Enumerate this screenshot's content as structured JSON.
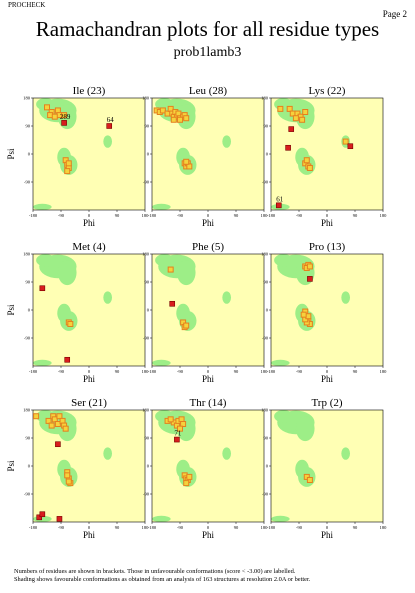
{
  "header": {
    "program": "PROCHECK",
    "page": "Page 2",
    "title": "Ramachandran plots for all residue types",
    "subtitle": "prob1lamb3"
  },
  "footnote": {
    "line1": "Numbers of residues are shown in brackets. Those in unfavourable conformations (score < -3.00) are labelled.",
    "line2": "Shading shows favourable conformations as obtained from an analysis of 163 structures at resolution 2.0A or better."
  },
  "colors": {
    "panel_background": "#ffffb4",
    "favourable_shading": "#74e874",
    "point_fill": "#f5d23c",
    "point_edge": "#e5801e",
    "outlier_fill": "#d81e1e"
  },
  "chart_data": [
    {
      "type": "scatter",
      "title": "Ile (23)",
      "xlabel": "Phi",
      "ylabel": "Psi",
      "xlim": [
        -180,
        180
      ],
      "ylim": [
        -180,
        180
      ],
      "xticks": [
        -180,
        -90,
        0,
        90,
        180
      ],
      "yticks": [
        -90,
        0,
        90,
        180
      ],
      "series": [
        {
          "values": [
            [
              -135,
              150
            ],
            [
              -120,
              135
            ],
            [
              -100,
              140
            ],
            [
              -95,
              125
            ],
            [
              -80,
              125
            ],
            [
              -125,
              125
            ],
            [
              -110,
              120
            ],
            [
              -75,
              -20
            ],
            [
              -70,
              -35
            ],
            [
              -65,
              -45
            ],
            [
              -70,
              -55
            ],
            [
              -65,
              -30
            ]
          ]
        }
      ],
      "outliers": [
        {
          "x": 65,
          "y": 90,
          "label": "64"
        },
        {
          "x": -80,
          "y": 100,
          "label": "289"
        }
      ]
    },
    {
      "type": "scatter",
      "title": "Leu (28)",
      "xlabel": "Phi",
      "ylabel": "Psi",
      "xlim": [
        -180,
        180
      ],
      "ylim": [
        -180,
        180
      ],
      "xticks": [
        -180,
        -90,
        0,
        90,
        180
      ],
      "yticks": [
        -90,
        0,
        90,
        180
      ],
      "series": [
        {
          "values": [
            [
              -165,
              140
            ],
            [
              -155,
              135
            ],
            [
              -145,
              140
            ],
            [
              -130,
              130
            ],
            [
              -120,
              145
            ],
            [
              -115,
              130
            ],
            [
              -110,
              120
            ],
            [
              -105,
              135
            ],
            [
              -100,
              120
            ],
            [
              -95,
              130
            ],
            [
              -90,
              115
            ],
            [
              -80,
              120
            ],
            [
              -75,
              125
            ],
            [
              -70,
              115
            ],
            [
              -110,
              110
            ],
            [
              -90,
              110
            ],
            [
              -75,
              -30
            ],
            [
              -70,
              -40
            ],
            [
              -65,
              -30
            ],
            [
              -60,
              -40
            ],
            [
              -70,
              -25
            ]
          ]
        }
      ],
      "outliers": []
    },
    {
      "type": "scatter",
      "title": "Lys (22)",
      "xlabel": "Phi",
      "ylabel": "Psi",
      "xlim": [
        -180,
        180
      ],
      "ylim": [
        -180,
        180
      ],
      "xticks": [
        -180,
        -90,
        0,
        90,
        180
      ],
      "yticks": [
        -90,
        0,
        90,
        180
      ],
      "series": [
        {
          "values": [
            [
              -150,
              145
            ],
            [
              -120,
              145
            ],
            [
              -110,
              130
            ],
            [
              -95,
              130
            ],
            [
              -85,
              120
            ],
            [
              -70,
              135
            ],
            [
              -80,
              110
            ],
            [
              -100,
              115
            ],
            [
              -70,
              -30
            ],
            [
              -60,
              -40
            ],
            [
              -65,
              -20
            ],
            [
              -55,
              -45
            ],
            [
              60,
              40
            ]
          ]
        }
      ],
      "outliers": [
        {
          "x": -115,
          "y": 80,
          "label": ""
        },
        {
          "x": -125,
          "y": 20,
          "label": ""
        },
        {
          "x": 75,
          "y": 25,
          "label": ""
        },
        {
          "x": -155,
          "y": -165,
          "label": "61"
        }
      ]
    },
    {
      "type": "scatter",
      "title": "Met (4)",
      "xlabel": "Phi",
      "ylabel": "Psi",
      "xlim": [
        -180,
        180
      ],
      "ylim": [
        -180,
        180
      ],
      "xticks": [
        -180,
        -90,
        0,
        90,
        180
      ],
      "yticks": [
        -90,
        0,
        90,
        180
      ],
      "series": [
        {
          "values": [
            [
              -65,
              -40
            ],
            [
              -60,
              -45
            ]
          ]
        }
      ],
      "outliers": [
        {
          "x": -150,
          "y": 70,
          "label": ""
        },
        {
          "x": -70,
          "y": -160,
          "label": ""
        }
      ]
    },
    {
      "type": "scatter",
      "title": "Phe (5)",
      "xlabel": "Phi",
      "ylabel": "Psi",
      "xlim": [
        -180,
        180
      ],
      "ylim": [
        -180,
        180
      ],
      "xticks": [
        -180,
        -90,
        0,
        90,
        180
      ],
      "yticks": [
        -90,
        0,
        90,
        180
      ],
      "series": [
        {
          "values": [
            [
              -120,
              130
            ],
            [
              -80,
              -40
            ],
            [
              -75,
              -55
            ],
            [
              -70,
              -50
            ]
          ]
        }
      ],
      "outliers": [
        {
          "x": -115,
          "y": 20,
          "label": ""
        }
      ]
    },
    {
      "type": "scatter",
      "title": "Pro (13)",
      "xlabel": "Phi",
      "ylabel": "Psi",
      "xlim": [
        -180,
        180
      ],
      "ylim": [
        -180,
        180
      ],
      "xticks": [
        -180,
        -90,
        0,
        90,
        180
      ],
      "yticks": [
        -90,
        0,
        90,
        180
      ],
      "series": [
        {
          "values": [
            [
              -70,
              140
            ],
            [
              -60,
              145
            ],
            [
              -65,
              135
            ],
            [
              -55,
              140
            ],
            [
              -70,
              -5
            ],
            [
              -65,
              -25
            ],
            [
              -60,
              -35
            ],
            [
              -55,
              -45
            ],
            [
              -65,
              -40
            ],
            [
              -70,
              -30
            ],
            [
              -60,
              -20
            ],
            [
              -75,
              -15
            ]
          ]
        }
      ],
      "outliers": [
        {
          "x": -55,
          "y": 100,
          "label": ""
        }
      ]
    },
    {
      "type": "scatter",
      "title": "Ser (21)",
      "xlabel": "Phi",
      "ylabel": "Psi",
      "xlim": [
        -180,
        180
      ],
      "ylim": [
        -180,
        180
      ],
      "xticks": [
        -180,
        -90,
        0,
        90,
        180
      ],
      "yticks": [
        -90,
        0,
        90,
        180
      ],
      "series": [
        {
          "values": [
            [
              -170,
              160
            ],
            [
              -130,
              145
            ],
            [
              -115,
              160
            ],
            [
              -110,
              150
            ],
            [
              -100,
              135
            ],
            [
              -95,
              160
            ],
            [
              -85,
              145
            ],
            [
              -80,
              130
            ],
            [
              -75,
              120
            ],
            [
              -120,
              130
            ],
            [
              -70,
              -20
            ],
            [
              -65,
              -40
            ],
            [
              -60,
              -55
            ],
            [
              -65,
              -50
            ],
            [
              -70,
              -30
            ]
          ]
        }
      ],
      "outliers": [
        {
          "x": -100,
          "y": 70,
          "label": ""
        },
        {
          "x": -160,
          "y": -165,
          "label": ""
        },
        {
          "x": -150,
          "y": -155,
          "label": ""
        },
        {
          "x": -95,
          "y": -170,
          "label": ""
        }
      ]
    },
    {
      "type": "scatter",
      "title": "Thr (14)",
      "xlabel": "Phi",
      "ylabel": "Psi",
      "xlim": [
        -180,
        180
      ],
      "ylim": [
        -180,
        180
      ],
      "xticks": [
        -180,
        -90,
        0,
        90,
        180
      ],
      "yticks": [
        -90,
        0,
        90,
        180
      ],
      "series": [
        {
          "values": [
            [
              -130,
              145
            ],
            [
              -110,
              140
            ],
            [
              -100,
              130
            ],
            [
              -95,
              145
            ],
            [
              -85,
              150
            ],
            [
              -80,
              135
            ],
            [
              -90,
              120
            ],
            [
              -75,
              -30
            ],
            [
              -70,
              -40
            ],
            [
              -65,
              -45
            ],
            [
              -70,
              -55
            ],
            [
              -60,
              -35
            ],
            [
              -120,
              150
            ]
          ]
        }
      ],
      "outliers": [
        {
          "x": -100,
          "y": 85,
          "label": "71"
        }
      ]
    },
    {
      "type": "scatter",
      "title": "Trp (2)",
      "xlabel": "Phi",
      "ylabel": "Psi",
      "xlim": [
        -180,
        180
      ],
      "ylim": [
        -180,
        180
      ],
      "xticks": [
        -180,
        -90,
        0,
        90,
        180
      ],
      "yticks": [
        -90,
        0,
        90,
        180
      ],
      "series": [
        {
          "values": [
            [
              -65,
              -35
            ],
            [
              -55,
              -45
            ]
          ]
        }
      ],
      "outliers": []
    }
  ]
}
